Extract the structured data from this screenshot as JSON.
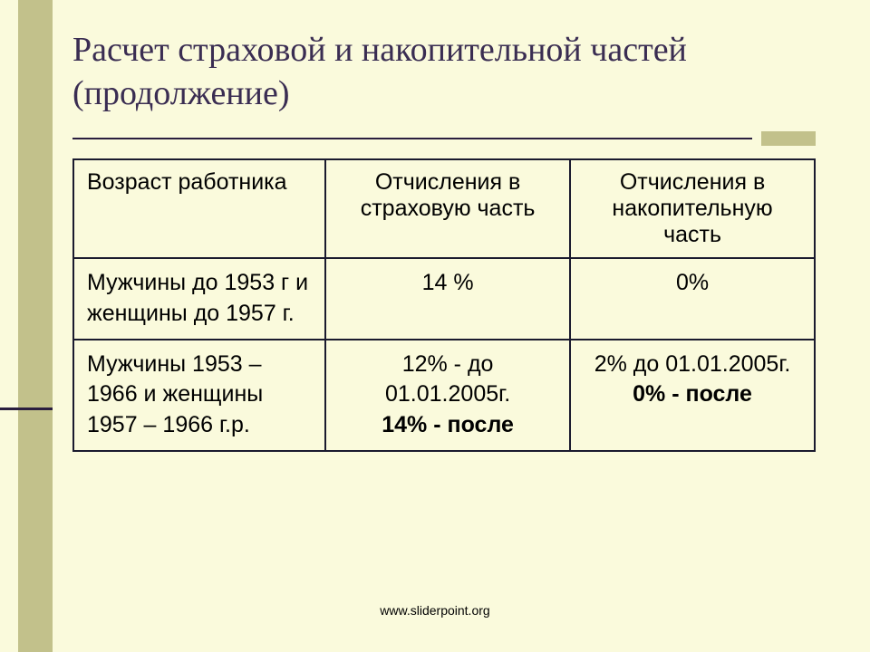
{
  "colors": {
    "background": "#fafadc",
    "stripe": "#c2c18b",
    "title": "#3a2d52",
    "divider": "#2a1e3f",
    "border": "#1a1a2e"
  },
  "title": "Расчет страховой и накопительной частей (продолжение)",
  "table": {
    "headers": [
      "Возраст работника",
      "Отчисления в страховую часть",
      "Отчисления в накопительную часть"
    ],
    "rows": [
      {
        "age": "Мужчины до 1953 г и женщины до 1957 г.",
        "insurance_line1": "14 %",
        "insurance_line2": "",
        "savings_line1": "0%",
        "savings_line2": ""
      },
      {
        "age": "Мужчины  1953 – 1966 и женщины 1957 – 1966 г.р.",
        "insurance_line1": "12% - до 01.01.2005г.",
        "insurance_line2": "14% - после",
        "savings_line1": "2%   до 01.01.2005г.",
        "savings_line2": "0% - после"
      }
    ]
  },
  "footer": "www.sliderpoint.org"
}
